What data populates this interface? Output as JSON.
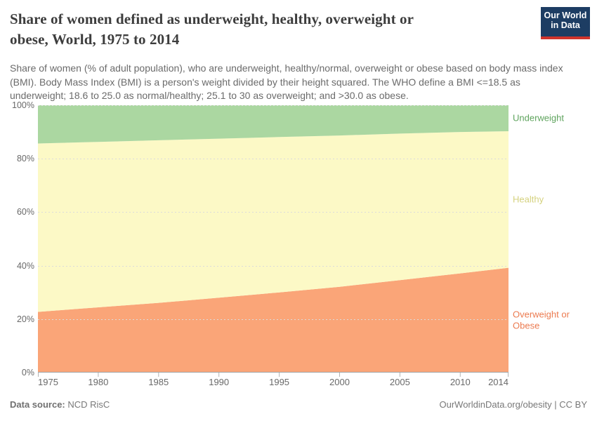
{
  "header": {
    "title_lines": [
      "Share of women defined as underweight, healthy, overweight or",
      "obese, World, 1975 to 2014"
    ],
    "subtitle": "Share of women (% of adult population), who are underweight, healthy/normal, overweight or obese based on body mass index (BMI). Body Mass Index (BMI) is a person's weight divided by their height squared. The WHO define a BMI <=18.5 as underweight; 18.6 to 25.0 as normal/healthy; 25.1 to 30 as overweight; and >30.0 as obese.",
    "logo": {
      "line1": "Our World",
      "line2": "in Data",
      "bg_color": "#1d3d63",
      "accent_color": "#d0342c"
    }
  },
  "chart_data": {
    "type": "area",
    "stacked": true,
    "title": "Share of women defined as underweight, healthy, overweight or obese, World, 1975 to 2014",
    "x": [
      1975,
      1980,
      1985,
      1990,
      1995,
      2000,
      2005,
      2010,
      2014
    ],
    "xticks": [
      "1975",
      "1980",
      "1985",
      "1990",
      "1995",
      "2000",
      "2005",
      "2010",
      "2014"
    ],
    "yticks": [
      0,
      20,
      40,
      60,
      80,
      100
    ],
    "ytick_labels": [
      "0%",
      "20%",
      "40%",
      "60%",
      "80%",
      "100%"
    ],
    "ylim": [
      0,
      100
    ],
    "xlim": [
      1975,
      2014
    ],
    "grid": "dashed-horizontal",
    "legend_position": "labels-right-of-plot",
    "series": [
      {
        "name": "Overweight or Obese",
        "area_color": "#faa578",
        "label_color": "#ec7b50",
        "values": [
          22.7,
          24.4,
          26.1,
          28.0,
          30.0,
          32.1,
          34.6,
          37.1,
          39.2
        ]
      },
      {
        "name": "Healthy",
        "area_color": "#fcf9c6",
        "label_color": "#d5d27f",
        "values": [
          63.0,
          61.9,
          60.8,
          59.5,
          58.1,
          56.6,
          54.8,
          52.9,
          51.1
        ]
      },
      {
        "name": "Underweight",
        "area_color": "#abd7a1",
        "label_color": "#5fa45e",
        "values": [
          14.3,
          13.7,
          13.1,
          12.5,
          11.9,
          11.3,
          10.6,
          10.0,
          9.7
        ]
      }
    ]
  },
  "footer": {
    "source_label": "Data source:",
    "source_value": "NCD RisC",
    "attribution": "OurWorldinData.org/obesity | CC BY"
  }
}
